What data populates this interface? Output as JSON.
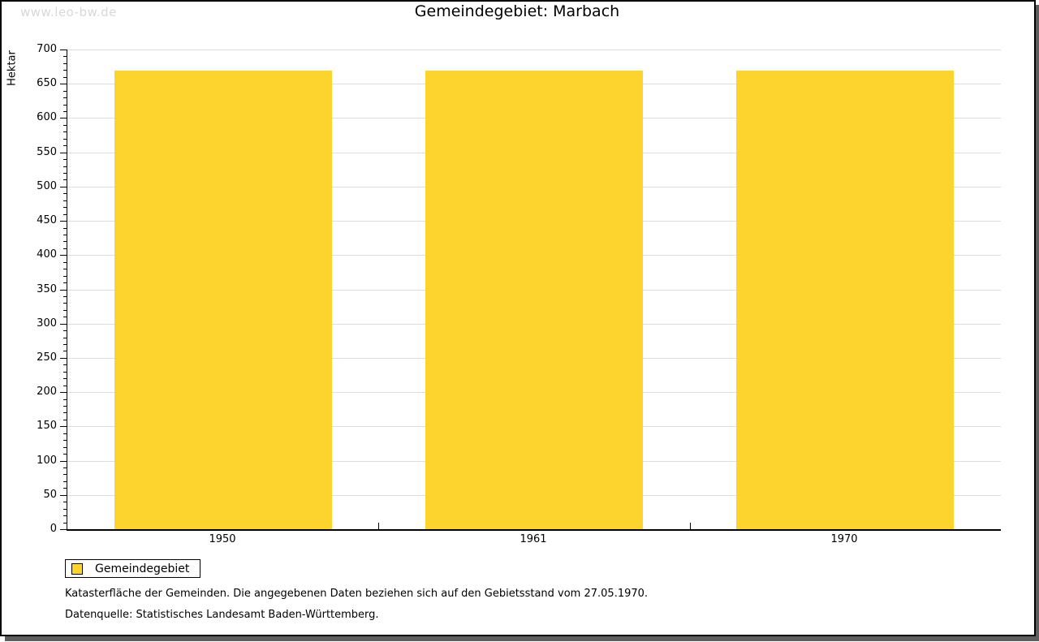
{
  "watermark": "www.leo-bw.de",
  "chart_data": {
    "type": "bar",
    "title": "Gemeindegebiet: Marbach",
    "categories": [
      "1950",
      "1961",
      "1970"
    ],
    "values": [
      669,
      669,
      669
    ],
    "series_name": "Gemeindegebiet",
    "xlabel": "",
    "ylabel": "Hektar",
    "ylim": [
      0,
      700
    ],
    "ytick_step": 50,
    "ytick_minor_step": 10,
    "grid": true,
    "bar_color": "#fcd42d",
    "gridline_color": "#dddddd",
    "legend_position": "bottom-left",
    "legend": [
      {
        "label": "Gemeindegebiet",
        "color": "#fcd42d"
      }
    ]
  },
  "footer": {
    "line1": "Katasterfläche der Gemeinden. Die angegebenen Daten beziehen sich auf den Gebietsstand vom 27.05.1970.",
    "line2": "Datenquelle: Statistisches Landesamt Baden-Württemberg."
  },
  "colors": {
    "frame_border": "#000000",
    "frame_shadow": "#5e5e5e",
    "watermark": "#d8d8d8"
  }
}
